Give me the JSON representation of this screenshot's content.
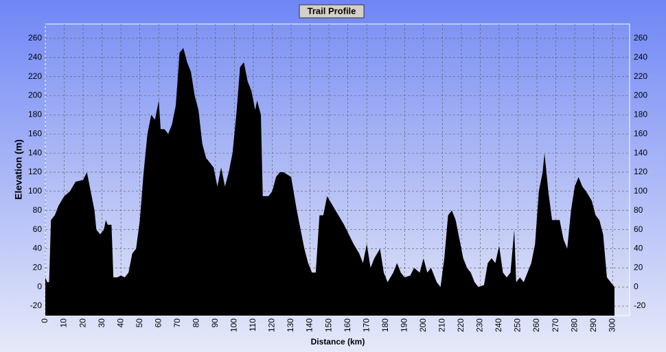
{
  "chart_data": {
    "type": "area",
    "title": "Trail Profile",
    "x_label": "Distance (km)",
    "y_label": "Elevation (m)",
    "x": [
      0,
      1,
      2,
      3,
      5,
      7,
      10,
      13,
      16,
      20,
      22,
      24,
      26,
      27,
      29,
      31,
      32,
      33,
      35,
      36,
      38,
      40,
      42,
      44,
      46,
      48,
      50,
      52,
      54,
      56,
      58,
      60,
      61,
      63,
      65,
      67,
      69,
      71,
      73,
      75,
      77,
      79,
      81,
      83,
      85,
      87,
      89,
      91,
      93,
      95,
      97,
      99,
      101,
      103,
      105,
      107,
      109,
      111,
      112,
      114,
      115,
      118,
      120,
      122,
      124,
      126,
      130,
      133,
      135,
      137,
      139,
      141,
      143,
      145,
      147,
      149,
      152,
      158,
      163,
      166,
      168,
      170,
      172,
      174,
      177,
      179,
      181,
      184,
      186,
      188,
      190,
      193,
      195,
      198,
      200,
      202,
      204,
      207,
      209,
      211,
      213,
      215,
      217,
      219,
      221,
      223,
      225,
      227,
      229,
      232,
      234,
      236,
      238,
      240,
      242,
      244,
      246,
      248,
      249,
      251,
      253,
      255,
      257,
      259,
      261,
      263,
      264,
      266,
      268,
      272,
      274,
      276,
      278,
      280,
      282,
      284,
      286,
      289,
      291,
      293,
      295,
      297,
      299,
      301
    ],
    "values": [
      10,
      5,
      5,
      70,
      75,
      85,
      95,
      100,
      110,
      112,
      120,
      100,
      80,
      60,
      55,
      60,
      70,
      65,
      65,
      10,
      10,
      12,
      10,
      15,
      35,
      40,
      70,
      120,
      160,
      180,
      175,
      195,
      165,
      165,
      160,
      170,
      190,
      245,
      250,
      235,
      225,
      200,
      185,
      150,
      135,
      130,
      125,
      105,
      125,
      105,
      120,
      140,
      180,
      230,
      235,
      215,
      205,
      185,
      195,
      180,
      95,
      95,
      100,
      115,
      120,
      120,
      115,
      80,
      60,
      40,
      25,
      15,
      15,
      75,
      75,
      95,
      85,
      65,
      45,
      35,
      25,
      45,
      20,
      30,
      40,
      15,
      5,
      15,
      25,
      15,
      10,
      12,
      20,
      15,
      30,
      15,
      20,
      5,
      0,
      30,
      75,
      80,
      70,
      50,
      30,
      20,
      15,
      5,
      0,
      2,
      25,
      30,
      25,
      43,
      15,
      10,
      15,
      60,
      5,
      10,
      5,
      15,
      25,
      45,
      100,
      120,
      140,
      100,
      70,
      70,
      50,
      40,
      80,
      105,
      115,
      105,
      100,
      90,
      75,
      70,
      55,
      10,
      5,
      0
    ],
    "color": "#000000",
    "xlim": [
      0,
      309
    ],
    "xticks": [
      0,
      10,
      20,
      30,
      40,
      50,
      60,
      70,
      80,
      90,
      100,
      110,
      120,
      130,
      140,
      150,
      160,
      170,
      180,
      190,
      200,
      210,
      220,
      230,
      240,
      250,
      260,
      270,
      280,
      290,
      300
    ],
    "ylim": [
      -30,
      275
    ],
    "yticks": [
      -20,
      0,
      20,
      40,
      60,
      80,
      100,
      120,
      140,
      160,
      180,
      200,
      220,
      240,
      260
    ],
    "grid": true
  }
}
